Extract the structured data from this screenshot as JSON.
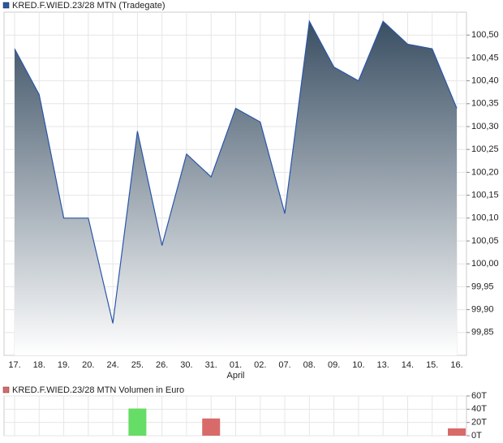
{
  "chart_data": [
    {
      "type": "area",
      "title": "KRED.F.WIED.23/28 MTN (Tradegate)",
      "categories": [
        "17.",
        "18.",
        "19.",
        "20.",
        "24.",
        "25.",
        "26.",
        "30.",
        "31.",
        "01.",
        "02.",
        "07.",
        "08.",
        "09.",
        "10.",
        "13.",
        "14.",
        "15.",
        "16."
      ],
      "annotations": [
        {
          "text": "April",
          "category": "01."
        }
      ],
      "values": [
        100.47,
        100.37,
        100.1,
        100.1,
        99.87,
        100.29,
        100.04,
        100.24,
        100.19,
        100.34,
        100.31,
        100.11,
        100.53,
        100.43,
        100.4,
        100.53,
        100.48,
        100.47,
        100.34
      ],
      "color": "#2a56a8",
      "ylim": [
        99.8,
        100.55
      ],
      "yticks": [
        {
          "value": 99.85,
          "label": "99,85"
        },
        {
          "value": 99.9,
          "label": "99,90"
        },
        {
          "value": 99.95,
          "label": "99,95"
        },
        {
          "value": 100.0,
          "label": "100,00"
        },
        {
          "value": 100.05,
          "label": "100,05"
        },
        {
          "value": 100.1,
          "label": "100,10"
        },
        {
          "value": 100.15,
          "label": "100,15"
        },
        {
          "value": 100.2,
          "label": "100,20"
        },
        {
          "value": 100.25,
          "label": "100,25"
        },
        {
          "value": 100.3,
          "label": "100,30"
        },
        {
          "value": 100.35,
          "label": "100,35"
        },
        {
          "value": 100.4,
          "label": "100,40"
        },
        {
          "value": 100.45,
          "label": "100,45"
        },
        {
          "value": 100.5,
          "label": "100,50"
        }
      ],
      "grid": true
    },
    {
      "type": "bar",
      "title": "KRED.F.WIED.23/28 MTN Volumen in Euro",
      "values": [
        0,
        0,
        0,
        0,
        0,
        41000,
        0,
        0,
        26000,
        0,
        0,
        0,
        0,
        0,
        0,
        0,
        0,
        0,
        11000
      ],
      "colors": [
        "#d96a6a",
        "#d96a6a",
        "#d96a6a",
        "#d96a6a",
        "#d96a6a",
        "#66dd66",
        "#d96a6a",
        "#d96a6a",
        "#d96a6a",
        "#d96a6a",
        "#d96a6a",
        "#d96a6a",
        "#d96a6a",
        "#d96a6a",
        "#d96a6a",
        "#d96a6a",
        "#d96a6a",
        "#d96a6a",
        "#d96a6a"
      ],
      "color": "#d96a6a",
      "ylim": [
        0,
        60000
      ],
      "yticks": [
        {
          "value": 0,
          "label": "0T"
        },
        {
          "value": 20000,
          "label": "20T"
        },
        {
          "value": 40000,
          "label": "40T"
        },
        {
          "value": 60000,
          "label": "60T"
        }
      ],
      "grid": true
    }
  ]
}
